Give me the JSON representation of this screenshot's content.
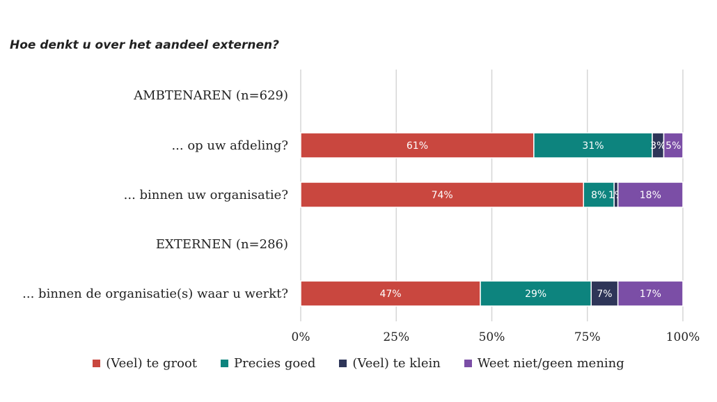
{
  "chart_data": {
    "type": "bar",
    "orientation": "horizontal",
    "stacked": true,
    "title": "Hoe denkt u over het aandeel externen?",
    "categories": [
      "AMBTENAREN (n=629)",
      "... op uw afdeling?",
      "... binnen uw organisatie?",
      "EXTERNEN (n=286)",
      "... binnen de organisatie(s) waar u werkt?"
    ],
    "series": [
      {
        "name": "(Veel) te groot",
        "color": "#c9473f",
        "values": [
          null,
          61,
          74,
          null,
          47
        ]
      },
      {
        "name": "Precies goed",
        "color": "#0d847e",
        "values": [
          null,
          31,
          8,
          null,
          29
        ]
      },
      {
        "name": "(Veel) te klein",
        "color": "#2e3558",
        "values": [
          null,
          3,
          1,
          null,
          7
        ]
      },
      {
        "name": "Weet niet/geen mening",
        "color": "#7b4ea6",
        "values": [
          null,
          5,
          18,
          null,
          17
        ]
      }
    ],
    "data_labels": [
      [
        null,
        null,
        null,
        null
      ],
      [
        "61%",
        "31%",
        "3%",
        "5%"
      ],
      [
        "74%",
        "8%",
        "1%",
        "18%"
      ],
      [
        null,
        null,
        null,
        null
      ],
      [
        "47%",
        "29%",
        "7%",
        "17%"
      ]
    ],
    "xlim": [
      0,
      100
    ],
    "xticks": [
      "0%",
      "25%",
      "50%",
      "75%",
      "100%"
    ],
    "xlabel": "",
    "ylabel": "",
    "grid": true,
    "legend_position": "bottom"
  }
}
